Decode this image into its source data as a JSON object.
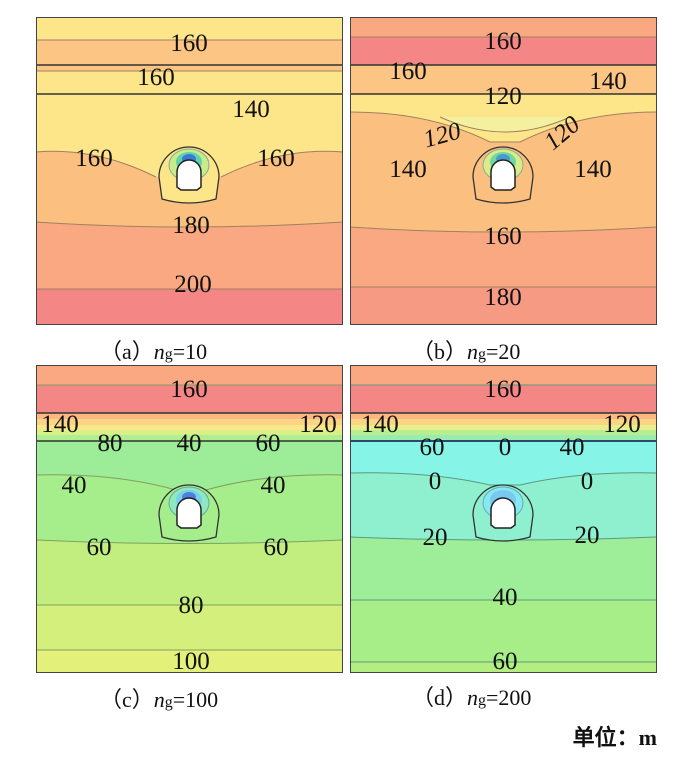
{
  "panels": [
    {
      "caption_prefix": "（a）",
      "caption_var": "n",
      "caption_sub": "g",
      "caption_value": "=10",
      "labels": [
        "160",
        "160",
        "140",
        "160",
        "160",
        "180",
        "200"
      ]
    },
    {
      "caption_prefix": "（b）",
      "caption_var": "n",
      "caption_sub": "g",
      "caption_value": "=20",
      "labels": [
        "160",
        "160",
        "140",
        "120",
        "120",
        "120",
        "140",
        "140",
        "160",
        "180"
      ]
    },
    {
      "caption_prefix": "（c）",
      "caption_var": "n",
      "caption_sub": "g",
      "caption_value": "=100",
      "labels": [
        "160",
        "140",
        "80",
        "40",
        "120",
        "60",
        "40",
        "40",
        "60",
        "60",
        "80",
        "100"
      ]
    },
    {
      "caption_prefix": "（d）",
      "caption_var": "n",
      "caption_sub": "g",
      "caption_value": "=200",
      "labels": [
        "160",
        "140",
        "60",
        "0",
        "120",
        "40",
        "0",
        "0",
        "20",
        "20",
        "40",
        "60"
      ]
    }
  ],
  "unit_label": "单位：m",
  "colors": {
    "red": "#f58686",
    "salmon": "#f9a881",
    "orange": "#fcc583",
    "yellow": "#fde68a",
    "cyan": "#86f4e6",
    "teal": "#8ff0cf",
    "green": "#9eed98",
    "lime": "#b5ee80"
  }
}
